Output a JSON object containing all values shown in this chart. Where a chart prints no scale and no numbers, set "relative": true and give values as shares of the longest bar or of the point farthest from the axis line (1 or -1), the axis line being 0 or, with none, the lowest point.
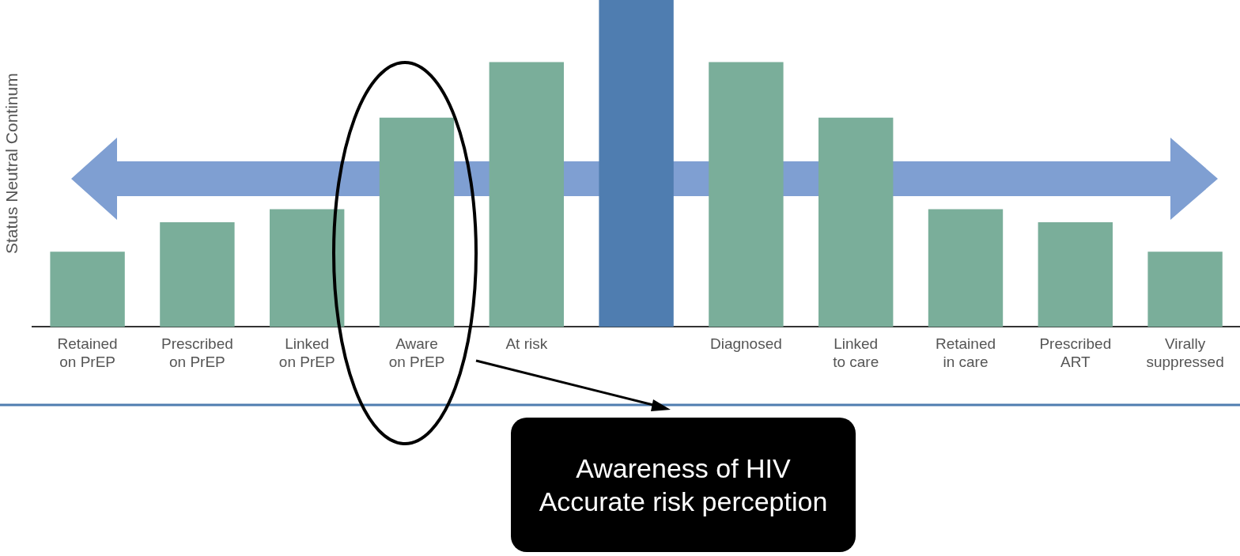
{
  "chart_data": {
    "type": "bar",
    "relative": true,
    "ylabel": "Status Neutral Continum",
    "categories": [
      "Retained\non PrEP",
      "Prescribed\non PrEP",
      "Linked\non PrEP",
      "Aware\non PrEP",
      "At risk",
      null,
      "Diagnosed",
      "Linked\nto care",
      "Retained\nin care",
      "Prescribed\nART",
      "Virally\nsuppressed"
    ],
    "values": [
      0.23,
      0.32,
      0.36,
      0.64,
      0.81,
      1,
      0.81,
      0.64,
      0.36,
      0.32,
      0.23
    ],
    "colors": [
      "#7aae9a",
      "#7aae9a",
      "#7aae9a",
      "#7aae9a",
      "#7aae9a",
      "#4f7db0",
      "#7aae9a",
      "#7aae9a",
      "#7aae9a",
      "#7aae9a",
      "#7aae9a"
    ],
    "annotations": [
      "Awareness of HIV\nAccurate risk perception"
    ]
  }
}
